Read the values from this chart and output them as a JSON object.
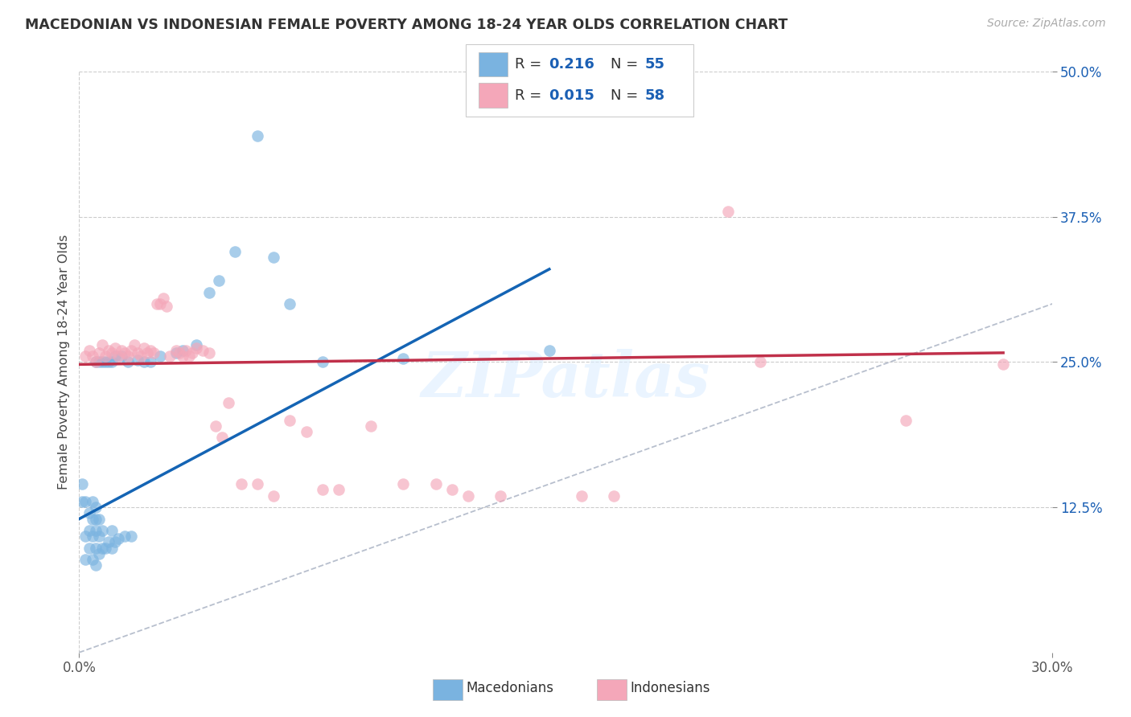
{
  "title": "MACEDONIAN VS INDONESIAN FEMALE POVERTY AMONG 18-24 YEAR OLDS CORRELATION CHART",
  "source": "Source: ZipAtlas.com",
  "ylabel": "Female Poverty Among 18-24 Year Olds",
  "xlabel_macedonian": "Macedonians",
  "xlabel_indonesian": "Indonesians",
  "xlim": [
    0.0,
    0.3
  ],
  "ylim": [
    0.0,
    0.5
  ],
  "macedonian_color": "#7ab3e0",
  "indonesian_color": "#f4a7b9",
  "trend_macedonian_color": "#1464b4",
  "trend_indonesian_color": "#c0304a",
  "diagonal_color": "#b0b8c8",
  "watermark": "ZIPatlas",
  "macedonian_x": [
    0.001,
    0.001,
    0.002,
    0.002,
    0.002,
    0.003,
    0.003,
    0.003,
    0.004,
    0.004,
    0.004,
    0.004,
    0.005,
    0.005,
    0.005,
    0.005,
    0.005,
    0.005,
    0.006,
    0.006,
    0.006,
    0.006,
    0.007,
    0.007,
    0.007,
    0.008,
    0.008,
    0.009,
    0.009,
    0.01,
    0.01,
    0.01,
    0.011,
    0.011,
    0.012,
    0.013,
    0.014,
    0.015,
    0.016,
    0.018,
    0.02,
    0.022,
    0.025,
    0.03,
    0.032,
    0.036,
    0.04,
    0.043,
    0.048,
    0.055,
    0.06,
    0.065,
    0.075,
    0.1,
    0.145
  ],
  "macedonian_y": [
    0.13,
    0.145,
    0.08,
    0.1,
    0.13,
    0.09,
    0.105,
    0.12,
    0.08,
    0.1,
    0.115,
    0.13,
    0.075,
    0.09,
    0.105,
    0.115,
    0.125,
    0.25,
    0.085,
    0.1,
    0.115,
    0.25,
    0.09,
    0.105,
    0.25,
    0.09,
    0.25,
    0.095,
    0.25,
    0.09,
    0.105,
    0.25,
    0.095,
    0.255,
    0.098,
    0.255,
    0.1,
    0.25,
    0.1,
    0.252,
    0.25,
    0.25,
    0.255,
    0.258,
    0.26,
    0.265,
    0.31,
    0.32,
    0.345,
    0.445,
    0.34,
    0.3,
    0.25,
    0.253,
    0.26
  ],
  "indonesian_x": [
    0.002,
    0.003,
    0.004,
    0.005,
    0.006,
    0.007,
    0.008,
    0.009,
    0.01,
    0.011,
    0.012,
    0.013,
    0.014,
    0.015,
    0.016,
    0.017,
    0.018,
    0.019,
    0.02,
    0.021,
    0.022,
    0.023,
    0.024,
    0.025,
    0.026,
    0.027,
    0.028,
    0.03,
    0.031,
    0.032,
    0.033,
    0.034,
    0.035,
    0.036,
    0.038,
    0.04,
    0.042,
    0.044,
    0.046,
    0.05,
    0.055,
    0.06,
    0.065,
    0.07,
    0.075,
    0.08,
    0.09,
    0.1,
    0.11,
    0.115,
    0.12,
    0.13,
    0.155,
    0.165,
    0.2,
    0.21,
    0.255,
    0.285
  ],
  "indonesian_y": [
    0.255,
    0.26,
    0.255,
    0.25,
    0.258,
    0.265,
    0.255,
    0.26,
    0.258,
    0.262,
    0.255,
    0.26,
    0.258,
    0.255,
    0.26,
    0.265,
    0.258,
    0.255,
    0.262,
    0.258,
    0.26,
    0.258,
    0.3,
    0.3,
    0.305,
    0.298,
    0.255,
    0.26,
    0.258,
    0.255,
    0.26,
    0.255,
    0.258,
    0.262,
    0.26,
    0.258,
    0.195,
    0.185,
    0.215,
    0.145,
    0.145,
    0.135,
    0.2,
    0.19,
    0.14,
    0.14,
    0.195,
    0.145,
    0.145,
    0.14,
    0.135,
    0.135,
    0.135,
    0.135,
    0.38,
    0.25,
    0.2,
    0.248
  ],
  "mac_trend_x0": 0.0,
  "mac_trend_x1": 0.145,
  "mac_trend_y0": 0.115,
  "mac_trend_y1": 0.33,
  "ind_trend_x0": 0.0,
  "ind_trend_x1": 0.285,
  "ind_trend_y0": 0.248,
  "ind_trend_y1": 0.258
}
